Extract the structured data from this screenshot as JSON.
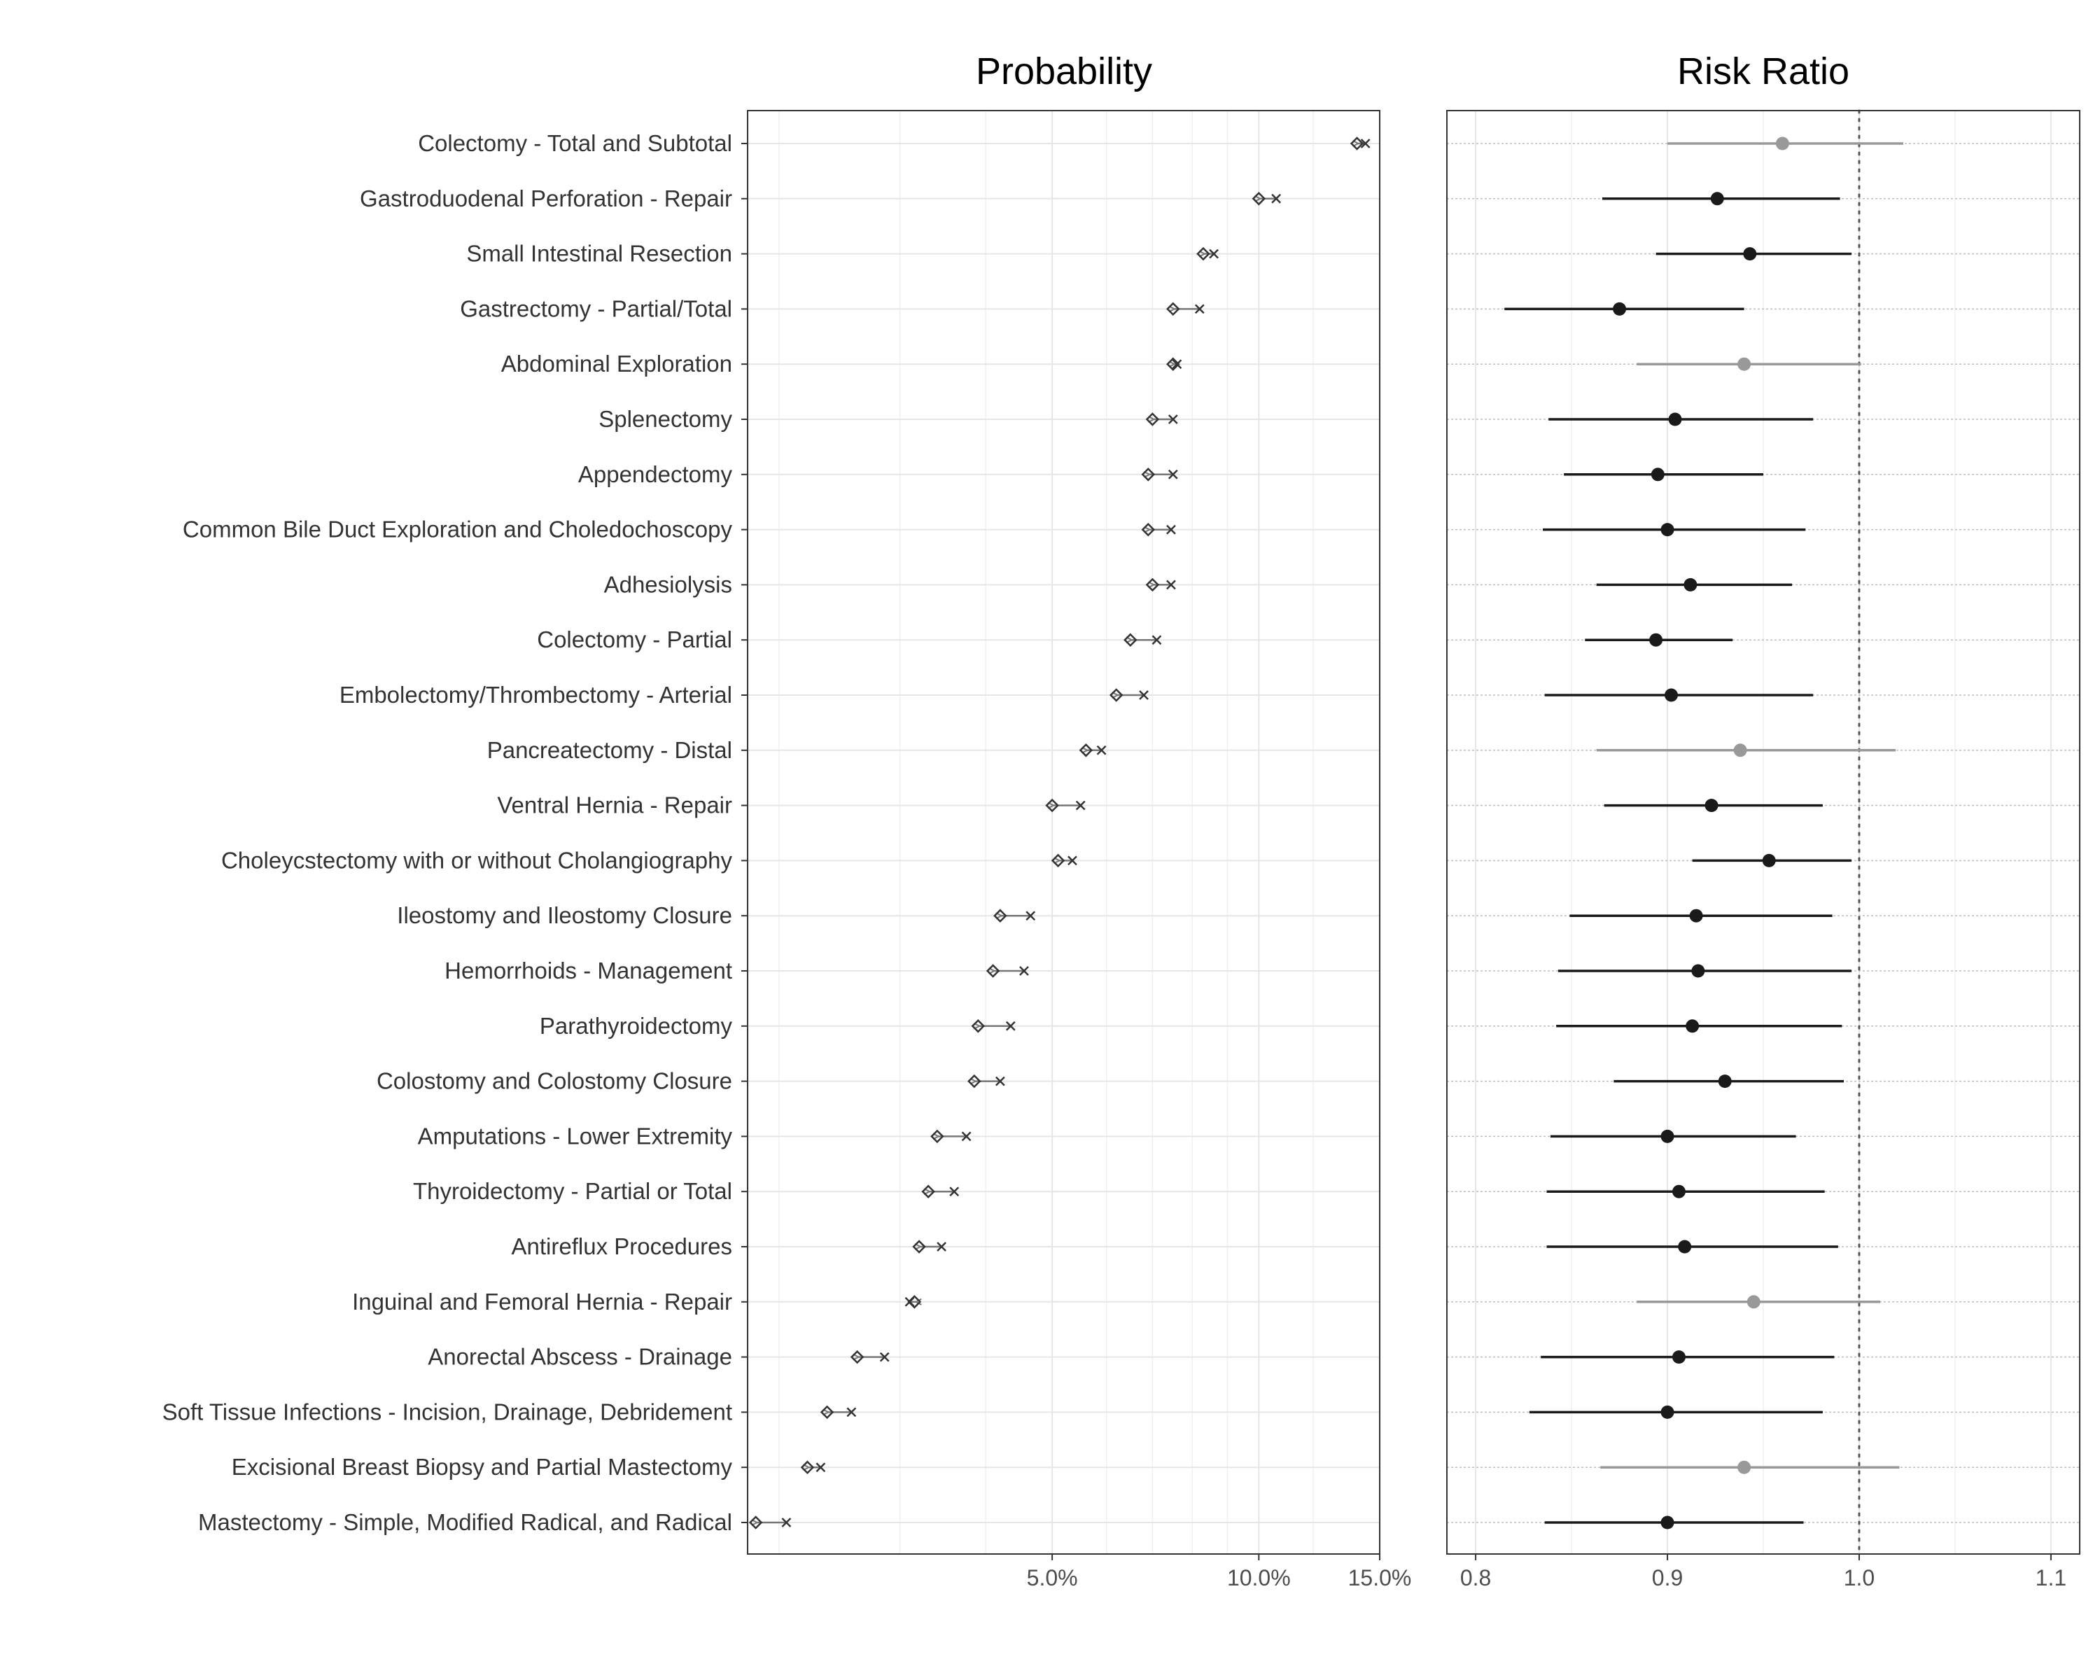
{
  "chart_data": [
    {
      "type": "dot-arrow",
      "title": "Probability",
      "xlabel": "",
      "ylabel": "",
      "x_scale": "log",
      "xlim": [
        1.8,
        15.0
      ],
      "xticks": [
        5,
        10,
        15
      ],
      "xtick_labels": [
        "5.0%",
        "10.0%",
        "15.0%"
      ],
      "grid": true,
      "categories": [
        "Colectomy - Total and Subtotal",
        "Gastroduodenal Perforation - Repair",
        "Small Intestinal Resection",
        "Gastrectomy - Partial/Total",
        "Abdominal Exploration",
        "Splenectomy",
        "Appendectomy",
        "Common Bile Duct Exploration and Choledochoscopy",
        "Adhesiolysis",
        "Colectomy - Partial",
        "Embolectomy/Thrombectomy - Arterial",
        "Pancreatectomy - Distal",
        "Ventral Hernia - Repair",
        "Choleycstectomy with or without Cholangiography",
        "Ileostomy and Ileostomy Closure",
        "Hemorrhoids - Management",
        "Parathyroidectomy",
        "Colostomy and Colostomy Closure",
        "Amputations - Lower Extremity",
        "Thyroidectomy - Partial or Total",
        "Antireflux Procedures",
        "Inguinal and Femoral Hernia - Repair",
        "Anorectal Abscess - Drainage",
        "Soft Tissue Infections - Incision, Drainage, Debridement",
        "Excisional Breast Biopsy and Partial Mastectomy",
        "Mastectomy - Simple, Modified Radical, and Radical"
      ],
      "series": [
        {
          "marker": "x",
          "values": [
            14.3,
            10.6,
            8.6,
            8.2,
            7.6,
            7.5,
            7.5,
            7.45,
            7.45,
            7.1,
            6.8,
            5.9,
            5.5,
            5.35,
            4.65,
            4.55,
            4.35,
            4.2,
            3.75,
            3.6,
            3.45,
            3.1,
            2.85,
            2.55,
            2.3,
            2.05
          ]
        },
        {
          "marker": "diamond",
          "values": [
            13.9,
            10.0,
            8.3,
            7.5,
            7.5,
            7.0,
            6.9,
            6.9,
            7.0,
            6.5,
            6.2,
            5.6,
            5.0,
            5.1,
            4.2,
            4.1,
            3.9,
            3.85,
            3.4,
            3.3,
            3.2,
            3.15,
            2.6,
            2.35,
            2.2,
            1.85
          ]
        }
      ]
    },
    {
      "type": "forest",
      "title": "Risk Ratio",
      "xlabel": "",
      "ylabel": "",
      "xlim": [
        0.785,
        1.115
      ],
      "xticks": [
        0.8,
        0.9,
        1.0,
        1.1
      ],
      "xtick_labels": [
        "0.8",
        "0.9",
        "1.0",
        "1.1"
      ],
      "reference_line": 1.0,
      "grid": true,
      "categories": "same as Probability panel",
      "estimate": [
        0.96,
        0.926,
        0.943,
        0.875,
        0.94,
        0.904,
        0.895,
        0.9,
        0.912,
        0.894,
        0.902,
        0.938,
        0.923,
        0.953,
        0.915,
        0.916,
        0.913,
        0.93,
        0.9,
        0.906,
        0.909,
        0.945,
        0.906,
        0.9,
        0.94,
        0.9
      ],
      "lower": [
        0.9,
        0.866,
        0.894,
        0.815,
        0.884,
        0.838,
        0.846,
        0.835,
        0.863,
        0.857,
        0.836,
        0.863,
        0.867,
        0.913,
        0.849,
        0.843,
        0.842,
        0.872,
        0.839,
        0.837,
        0.837,
        0.884,
        0.834,
        0.828,
        0.865,
        0.836
      ],
      "upper": [
        1.023,
        0.99,
        0.996,
        0.94,
        1.001,
        0.976,
        0.95,
        0.972,
        0.965,
        0.934,
        0.976,
        1.019,
        0.981,
        0.996,
        0.986,
        0.996,
        0.991,
        0.992,
        0.967,
        0.982,
        0.989,
        1.011,
        0.987,
        0.981,
        1.021,
        0.971
      ],
      "significant": [
        false,
        true,
        true,
        true,
        false,
        true,
        true,
        true,
        true,
        true,
        true,
        false,
        true,
        true,
        true,
        true,
        true,
        true,
        true,
        true,
        true,
        false,
        true,
        true,
        false,
        true
      ],
      "colors": {
        "significant": "#1a1a1a",
        "not_significant": "#999999"
      }
    }
  ]
}
